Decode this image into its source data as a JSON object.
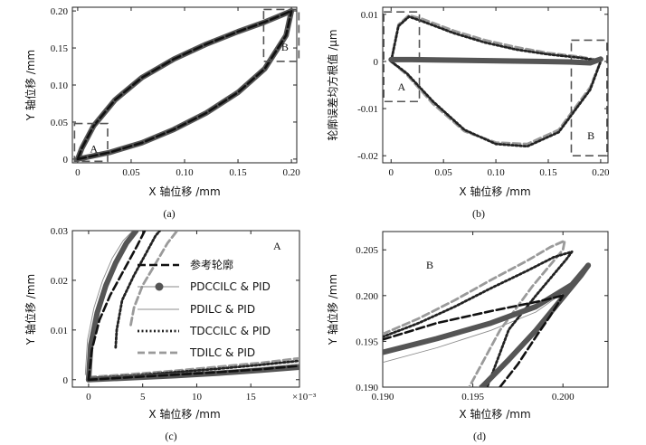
{
  "figure": {
    "legend": [
      "参考轮廓",
      "PDCCILC & PID",
      "PDILC & PID",
      "TDCCILC & PID",
      "TDILC & PID"
    ],
    "colors": {
      "ref": "#111111",
      "pdcc": "#555555",
      "pdilc": "#8c8c8c",
      "tdcc": "#222222",
      "tdilc": "#9a9a9a"
    }
  },
  "chart_data": [
    {
      "type": "line",
      "caption": "(a)",
      "xlabel": "X 轴位移 /mm",
      "ylabel": "Y 轴位移 /mm",
      "xlim": [
        -0.005,
        0.205
      ],
      "ylim": [
        -0.005,
        0.205
      ],
      "xticks": [
        0,
        0.05,
        0.1,
        0.15,
        0.2
      ],
      "xticklabels": [
        "0",
        "0.05",
        "0.10",
        "0.15",
        "0.20"
      ],
      "yticks": [
        0,
        0.05,
        0.1,
        0.15,
        0.2
      ],
      "yticklabels": [
        "0",
        "0.05",
        "0.10",
        "0.15",
        "0.20"
      ],
      "boxes": [
        {
          "label": "A",
          "x": [
            -0.003,
            0.028
          ],
          "y": [
            -0.003,
            0.048
          ]
        },
        {
          "label": "B",
          "x": [
            0.174,
            0.207
          ],
          "y": [
            0.132,
            0.202
          ]
        }
      ],
      "series": [
        {
          "name": "参考轮廓",
          "x": [
            0,
            0.004,
            0.015,
            0.035,
            0.06,
            0.09,
            0.12,
            0.15,
            0.175,
            0.195,
            0.2
          ],
          "y": [
            0,
            0.015,
            0.045,
            0.08,
            0.11,
            0.135,
            0.155,
            0.172,
            0.185,
            0.197,
            0.2
          ]
        },
        {
          "name": "PDCCILC & PID",
          "x": [
            0,
            0.004,
            0.015,
            0.035,
            0.06,
            0.09,
            0.12,
            0.15,
            0.175,
            0.195,
            0.2
          ],
          "y": [
            0,
            0.015,
            0.045,
            0.08,
            0.11,
            0.135,
            0.155,
            0.172,
            0.185,
            0.197,
            0.2
          ]
        },
        {
          "name": "PDILC & PID",
          "x": [
            0,
            0.004,
            0.015,
            0.035,
            0.06,
            0.09,
            0.12,
            0.15,
            0.175,
            0.195,
            0.2
          ],
          "y": [
            0,
            0.017,
            0.047,
            0.082,
            0.112,
            0.137,
            0.157,
            0.174,
            0.187,
            0.198,
            0.2
          ]
        },
        {
          "name": "TDCCILC & PID",
          "x": [
            0,
            0.004,
            0.015,
            0.035,
            0.06,
            0.09,
            0.12,
            0.15,
            0.175,
            0.195,
            0.2
          ],
          "y": [
            0,
            0.014,
            0.044,
            0.079,
            0.109,
            0.134,
            0.154,
            0.171,
            0.184,
            0.196,
            0.2
          ]
        },
        {
          "name": "TDILC & PID",
          "x": [
            0,
            0.004,
            0.015,
            0.035,
            0.06,
            0.09,
            0.12,
            0.15,
            0.175,
            0.195,
            0.2
          ],
          "y": [
            0,
            0.016,
            0.046,
            0.081,
            0.111,
            0.136,
            0.156,
            0.173,
            0.186,
            0.198,
            0.2
          ]
        },
        {
          "name": "参考轮廓 (lower)",
          "x": [
            0,
            0.03,
            0.06,
            0.09,
            0.12,
            0.15,
            0.175,
            0.195,
            0.2
          ],
          "y": [
            0,
            0.009,
            0.022,
            0.04,
            0.062,
            0.09,
            0.122,
            0.167,
            0.2
          ]
        },
        {
          "name": "PDCCILC & PID (lower)",
          "x": [
            0,
            0.03,
            0.06,
            0.09,
            0.12,
            0.15,
            0.175,
            0.195,
            0.2
          ],
          "y": [
            0,
            0.009,
            0.022,
            0.04,
            0.062,
            0.09,
            0.122,
            0.167,
            0.2
          ]
        },
        {
          "name": "PDILC & PID (lower)",
          "x": [
            0,
            0.03,
            0.06,
            0.09,
            0.12,
            0.15,
            0.175,
            0.195,
            0.2
          ],
          "y": [
            0,
            0.007,
            0.02,
            0.038,
            0.06,
            0.088,
            0.12,
            0.165,
            0.2
          ]
        },
        {
          "name": "TDCCILC & PID (lower)",
          "x": [
            0,
            0.03,
            0.06,
            0.09,
            0.12,
            0.15,
            0.175,
            0.195,
            0.2
          ],
          "y": [
            0,
            0.01,
            0.023,
            0.041,
            0.063,
            0.091,
            0.123,
            0.168,
            0.2
          ]
        },
        {
          "name": "TDILC & PID (lower)",
          "x": [
            0,
            0.03,
            0.06,
            0.09,
            0.12,
            0.15,
            0.175,
            0.195,
            0.2
          ],
          "y": [
            0,
            0.008,
            0.021,
            0.039,
            0.061,
            0.089,
            0.121,
            0.166,
            0.2
          ]
        }
      ]
    },
    {
      "type": "line",
      "caption": "(b)",
      "xlabel": "X 轴位移 /mm",
      "ylabel": "轮廓误差均方根值 /μm",
      "xlim": [
        -0.008,
        0.207
      ],
      "ylim": [
        -0.0215,
        0.0115
      ],
      "xticks": [
        0,
        0.05,
        0.1,
        0.15,
        0.2
      ],
      "xticklabels": [
        "0",
        "0.05",
        "0.10",
        "0.15",
        "0.20"
      ],
      "yticks": [
        0.01,
        0,
        -0.01,
        -0.02
      ],
      "yticklabels": [
        "0.01",
        "0",
        "-0.01",
        "-0.02"
      ],
      "boxes": [
        {
          "label": "A",
          "x": [
            -0.007,
            0.027
          ],
          "y": [
            -0.0085,
            0.0105
          ]
        },
        {
          "label": "B",
          "x": [
            0.172,
            0.206
          ],
          "y": [
            -0.02,
            0.0045
          ]
        }
      ],
      "series": [
        {
          "name": "PDCCILC & PID",
          "x": [
            0,
            0.02,
            0.05,
            0.08,
            0.11,
            0.14,
            0.17,
            0.19,
            0.2
          ],
          "y": [
            0.0004,
            0.0004,
            0.0003,
            0.0002,
            0.0001,
            0,
            -0.0001,
            -0.0003,
            0.0005
          ]
        },
        {
          "name": "PDILC & PID",
          "x": [
            0,
            0.02,
            0.05,
            0.08,
            0.11,
            0.14,
            0.17,
            0.19,
            0.2
          ],
          "y": [
            0.0007,
            0.0006,
            0.0005,
            0.0004,
            0.0002,
            0.0001,
            -0.0001,
            -0.0004,
            0.0007
          ]
        },
        {
          "name": "TDCCILC & PID",
          "x": [
            0,
            0.007,
            0.017,
            0.03,
            0.06,
            0.09,
            0.12,
            0.15,
            0.18,
            0.195,
            0.2
          ],
          "y": [
            0,
            0.0075,
            0.0095,
            0.0085,
            0.006,
            0.004,
            0.0025,
            0.0015,
            0.0008,
            0.0003,
            0
          ]
        },
        {
          "name": "TDCCILC & PID (lower)",
          "x": [
            0,
            0.015,
            0.04,
            0.07,
            0.1,
            0.13,
            0.16,
            0.19,
            0.2
          ],
          "y": [
            0,
            -0.0025,
            -0.0085,
            -0.0145,
            -0.0175,
            -0.018,
            -0.015,
            -0.006,
            0
          ]
        },
        {
          "name": "TDILC & PID",
          "x": [
            0,
            0.007,
            0.017,
            0.03,
            0.06,
            0.09,
            0.12,
            0.15,
            0.18,
            0.195,
            0.2
          ],
          "y": [
            0,
            0.0078,
            0.0098,
            0.009,
            0.0065,
            0.0045,
            0.003,
            0.0018,
            0.001,
            0.0004,
            0
          ]
        },
        {
          "name": "TDILC & PID (lower)",
          "x": [
            0,
            0.015,
            0.04,
            0.07,
            0.1,
            0.13,
            0.16,
            0.19,
            0.2
          ],
          "y": [
            0,
            -0.0028,
            -0.009,
            -0.0148,
            -0.0172,
            -0.0175,
            -0.0145,
            -0.0055,
            0
          ]
        }
      ]
    },
    {
      "type": "line",
      "caption": "(c)",
      "annotation": "A",
      "xlabel": "X 轴位移 /mm",
      "ylabel": "Y 轴位移 /mm",
      "xlim": [
        -0.0015,
        0.0195
      ],
      "ylim": [
        -0.0015,
        0.03
      ],
      "xticks": [
        0,
        0.005,
        0.01,
        0.015
      ],
      "xticklabels": [
        "0",
        "5",
        "10",
        "15"
      ],
      "xscale_label": "×10⁻³",
      "yticks": [
        0,
        0.01,
        0.02,
        0.03
      ],
      "yticklabels": [
        "0",
        "0.01",
        "0.02",
        "0.03"
      ],
      "series": [
        {
          "name": "参考轮廓",
          "x": [
            0,
            0.0003,
            0.001,
            0.002,
            0.003,
            0.0045,
            0.0052
          ],
          "y": [
            0,
            0.006,
            0.012,
            0.017,
            0.021,
            0.027,
            0.03
          ]
        },
        {
          "name": "PDCCILC & PID",
          "x": [
            0,
            0.0002,
            0.0008,
            0.0016,
            0.0025,
            0.0035,
            0.0044
          ],
          "y": [
            0,
            0.007,
            0.0135,
            0.019,
            0.0235,
            0.0275,
            0.03
          ]
        },
        {
          "name": "PDILC & PID",
          "x": [
            -0.0003,
            -0.0001,
            0.0005,
            0.0013,
            0.0022,
            0.0032,
            0.0041
          ],
          "y": [
            0.001,
            0.008,
            0.0145,
            0.02,
            0.0245,
            0.028,
            0.03
          ]
        },
        {
          "name": "TDCCILC & PID",
          "x": [
            0.0025,
            0.0026,
            0.0031,
            0.0042,
            0.0052,
            0.0062,
            0.0066
          ],
          "y": [
            0.0065,
            0.01,
            0.016,
            0.021,
            0.025,
            0.029,
            0.03
          ]
        },
        {
          "name": "TDILC & PID",
          "x": [
            0.0039,
            0.0042,
            0.005,
            0.0061,
            0.0073,
            0.0082
          ],
          "y": [
            0.011,
            0.0145,
            0.019,
            0.023,
            0.0275,
            0.03
          ]
        },
        {
          "name": "参考轮廓 (lower)",
          "x": [
            0,
            0.004,
            0.008,
            0.012,
            0.016,
            0.0195
          ],
          "y": [
            0,
            0.0005,
            0.001,
            0.0015,
            0.0021,
            0.0028
          ]
        },
        {
          "name": "PDCCILC & PID (lower)",
          "x": [
            0,
            0.004,
            0.008,
            0.012,
            0.016,
            0.0195
          ],
          "y": [
            0,
            0.0004,
            0.0008,
            0.0013,
            0.0019,
            0.0025
          ]
        },
        {
          "name": "PDILC & PID (lower)",
          "x": [
            0,
            0.004,
            0.008,
            0.012,
            0.016,
            0.0195
          ],
          "y": [
            0,
            0.0005,
            0.0011,
            0.0017,
            0.0024,
            0.0032
          ]
        },
        {
          "name": "TDCCILC & PID (lower)",
          "x": [
            0,
            0.004,
            0.008,
            0.012,
            0.016,
            0.0195
          ],
          "y": [
            0.0003,
            0.0008,
            0.0015,
            0.0022,
            0.003,
            0.0038
          ]
        },
        {
          "name": "TDILC & PID (lower)",
          "x": [
            0,
            0.004,
            0.008,
            0.012,
            0.016,
            0.0195
          ],
          "y": [
            0.0005,
            0.0011,
            0.0018,
            0.0026,
            0.0034,
            0.0043
          ]
        }
      ]
    },
    {
      "type": "line",
      "caption": "(d)",
      "annotation": "B",
      "xlabel": "X 轴位移 /mm",
      "ylabel": "Y 轴位移 /mm",
      "xlim": [
        0.19,
        0.2025
      ],
      "ylim": [
        0.19,
        0.207
      ],
      "xticks": [
        0.19,
        0.195,
        0.2
      ],
      "xticklabels": [
        "0.190",
        "0.195",
        "0.200"
      ],
      "yticks": [
        0.19,
        0.195,
        0.2,
        0.205
      ],
      "yticklabels": [
        "0.190",
        "0.195",
        "0.200",
        "0.205"
      ],
      "series": [
        {
          "name": "参考轮廓",
          "x": [
            0.19,
            0.193,
            0.196,
            0.1985,
            0.2
          ],
          "y": [
            0.1952,
            0.197,
            0.1983,
            0.1993,
            0.2
          ]
        },
        {
          "name": "参考轮廓 (lower)",
          "x": [
            0.1965,
            0.1975,
            0.1985,
            0.1993,
            0.2
          ],
          "y": [
            0.19,
            0.1925,
            0.1955,
            0.1978,
            0.2
          ]
        },
        {
          "name": "PDCCILC & PID",
          "x": [
            0.19,
            0.193,
            0.196,
            0.1985,
            0.2005,
            0.2014
          ],
          "y": [
            0.1938,
            0.1953,
            0.197,
            0.1988,
            0.2012,
            0.2033
          ]
        },
        {
          "name": "PDCCILC & PID (lower)",
          "x": [
            0.1955,
            0.197,
            0.1985,
            0.2,
            0.201,
            0.2014
          ],
          "y": [
            0.19,
            0.193,
            0.1962,
            0.1998,
            0.2022,
            0.2033
          ]
        },
        {
          "name": "PDILC & PID",
          "x": [
            0.19,
            0.193,
            0.196,
            0.1985,
            0.2005,
            0.2015
          ],
          "y": [
            0.1927,
            0.1943,
            0.1962,
            0.1982,
            0.201,
            0.2035
          ]
        },
        {
          "name": "PDILC & PID (lower)",
          "x": [
            0.1953,
            0.1968,
            0.1983,
            0.1998,
            0.201,
            0.2015
          ],
          "y": [
            0.19,
            0.1927,
            0.1958,
            0.1995,
            0.2022,
            0.2035
          ]
        },
        {
          "name": "TDCCILC & PID",
          "x": [
            0.19,
            0.192,
            0.194,
            0.196,
            0.198,
            0.1995,
            0.2005,
            0.2002,
            0.1985,
            0.197,
            0.1958
          ],
          "y": [
            0.1955,
            0.197,
            0.1988,
            0.2008,
            0.2027,
            0.2042,
            0.2048,
            0.204,
            0.2,
            0.1963,
            0.19
          ]
        },
        {
          "name": "TDILC & PID",
          "x": [
            0.19,
            0.192,
            0.194,
            0.196,
            0.198,
            0.1993,
            0.2001,
            0.2,
            0.1983,
            0.1965,
            0.1948
          ],
          "y": [
            0.1958,
            0.1975,
            0.1995,
            0.2017,
            0.2038,
            0.2053,
            0.206,
            0.205,
            0.201,
            0.1962,
            0.19
          ]
        }
      ]
    }
  ]
}
